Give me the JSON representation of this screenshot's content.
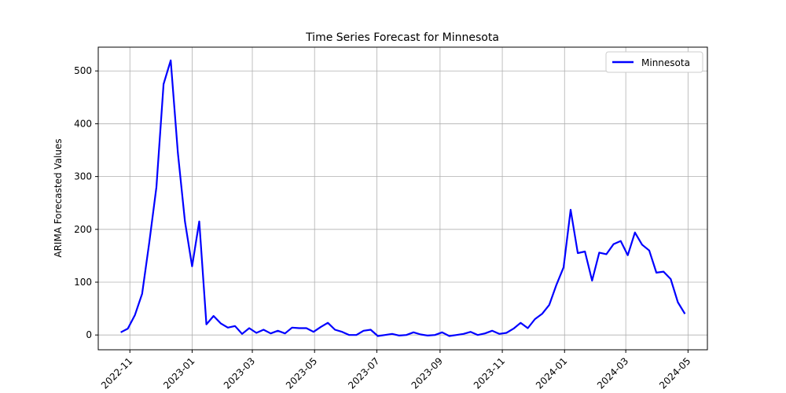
{
  "chart_data": {
    "type": "line",
    "title": "Time Series Forecast for Minnesota",
    "xlabel": "",
    "ylabel": "ARIMA Forecasted Values",
    "xlim": [
      "2022-10-01",
      "2024-05-20"
    ],
    "ylim": [
      -28,
      545
    ],
    "grid": true,
    "legend_position": "top-right",
    "x_ticks": [
      "2022-11",
      "2023-01",
      "2023-03",
      "2023-05",
      "2023-07",
      "2023-09",
      "2023-11",
      "2024-01",
      "2024-03",
      "2024-05"
    ],
    "y_ticks": [
      0,
      100,
      200,
      300,
      400,
      500
    ],
    "series": [
      {
        "name": "Minnesota",
        "color": "#0000ff",
        "x": [
          "2022-10-23",
          "2022-10-30",
          "2022-11-06",
          "2022-11-13",
          "2022-11-20",
          "2022-11-27",
          "2022-12-04",
          "2022-12-11",
          "2022-12-18",
          "2022-12-25",
          "2023-01-01",
          "2023-01-08",
          "2023-01-15",
          "2023-01-22",
          "2023-01-29",
          "2023-02-05",
          "2023-02-12",
          "2023-02-19",
          "2023-02-26",
          "2023-03-05",
          "2023-03-12",
          "2023-03-19",
          "2023-03-26",
          "2023-04-02",
          "2023-04-09",
          "2023-04-16",
          "2023-04-23",
          "2023-04-30",
          "2023-05-07",
          "2023-05-14",
          "2023-05-21",
          "2023-05-28",
          "2023-06-04",
          "2023-06-11",
          "2023-06-18",
          "2023-06-25",
          "2023-07-02",
          "2023-07-09",
          "2023-07-16",
          "2023-07-23",
          "2023-07-30",
          "2023-08-06",
          "2023-08-13",
          "2023-08-20",
          "2023-08-27",
          "2023-09-03",
          "2023-09-10",
          "2023-09-17",
          "2023-09-24",
          "2023-10-01",
          "2023-10-08",
          "2023-10-15",
          "2023-10-22",
          "2023-10-29",
          "2023-11-05",
          "2023-11-12",
          "2023-11-19",
          "2023-11-26",
          "2023-12-03",
          "2023-12-10",
          "2023-12-17",
          "2023-12-24",
          "2023-12-31",
          "2024-01-07",
          "2024-01-14",
          "2024-01-21",
          "2024-01-28",
          "2024-02-04",
          "2024-02-11",
          "2024-02-18",
          "2024-02-25",
          "2024-03-03",
          "2024-03-10",
          "2024-03-17",
          "2024-03-24",
          "2024-03-31",
          "2024-04-07",
          "2024-04-14",
          "2024-04-21",
          "2024-04-28"
        ],
        "values": [
          5,
          12,
          38,
          78,
          175,
          280,
          475,
          520,
          345,
          215,
          130,
          215,
          20,
          36,
          22,
          14,
          17,
          2,
          13,
          4,
          10,
          3,
          8,
          3,
          14,
          13,
          13,
          6,
          15,
          23,
          10,
          6,
          0,
          0,
          8,
          10,
          -2,
          0,
          2,
          -1,
          0,
          5,
          1,
          -1,
          0,
          5,
          -2,
          0,
          2,
          6,
          0,
          3,
          8,
          2,
          4,
          12,
          23,
          13,
          30,
          40,
          57,
          95,
          128,
          237,
          155,
          158,
          103,
          156,
          153,
          172,
          178,
          151,
          194,
          171,
          160,
          118,
          120,
          106,
          62,
          40
        ]
      }
    ]
  }
}
